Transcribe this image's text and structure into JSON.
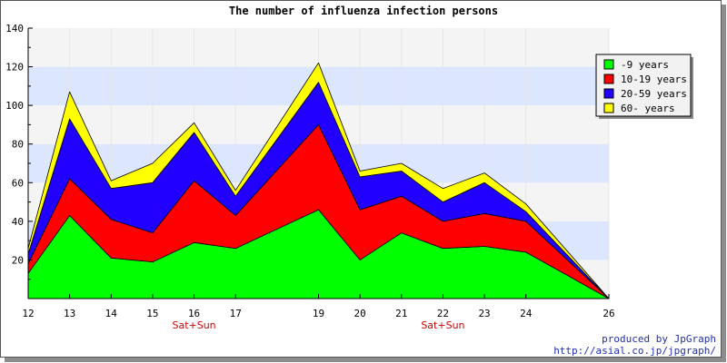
{
  "chart_data": {
    "type": "area",
    "stacked": true,
    "title": "The number of influenza infection persons",
    "xlabel": "",
    "ylabel": "",
    "x": [
      12,
      13,
      14,
      15,
      16,
      17,
      19,
      20,
      21,
      22,
      23,
      24,
      26
    ],
    "x_tick_labels": [
      "12",
      "13",
      "14",
      "15",
      "16",
      "17",
      "19",
      "20",
      "21",
      "22",
      "23",
      "24",
      "26"
    ],
    "x_sublabels": [
      {
        "x": 16,
        "text": "Sat+Sun"
      },
      {
        "x": 22,
        "text": "Sat+Sun"
      }
    ],
    "ylim": [
      0,
      140
    ],
    "y_ticks": [
      20,
      40,
      60,
      80,
      100,
      120,
      140
    ],
    "grid": true,
    "legend_position": "top-right",
    "series": [
      {
        "name": "-9 years",
        "color": "#00ff00",
        "values": [
          13,
          43,
          21,
          19,
          29,
          26,
          46,
          20,
          34,
          26,
          27,
          24,
          0
        ]
      },
      {
        "name": "10-19 years",
        "color": "#ff0000",
        "values": [
          5,
          19,
          20,
          15,
          32,
          17,
          44,
          26,
          19,
          14,
          17,
          16,
          0
        ]
      },
      {
        "name": "20-59 years",
        "color": "#2200ff",
        "values": [
          5,
          31,
          16,
          26,
          25,
          10,
          22,
          17,
          13,
          10,
          16,
          5,
          0
        ]
      },
      {
        "name": "60- years",
        "color": "#ffff00",
        "values": [
          3,
          14,
          4,
          10,
          5,
          3,
          10,
          3,
          4,
          7,
          5,
          4,
          0
        ]
      }
    ]
  },
  "colors": {
    "band_light": "#f4f4f4",
    "band_blue": "#dde6ff",
    "sublabel": "#d00000"
  },
  "footer": {
    "credit": "produced by JpGraph",
    "url": "http://asial.co.jp/jpgraph/"
  }
}
